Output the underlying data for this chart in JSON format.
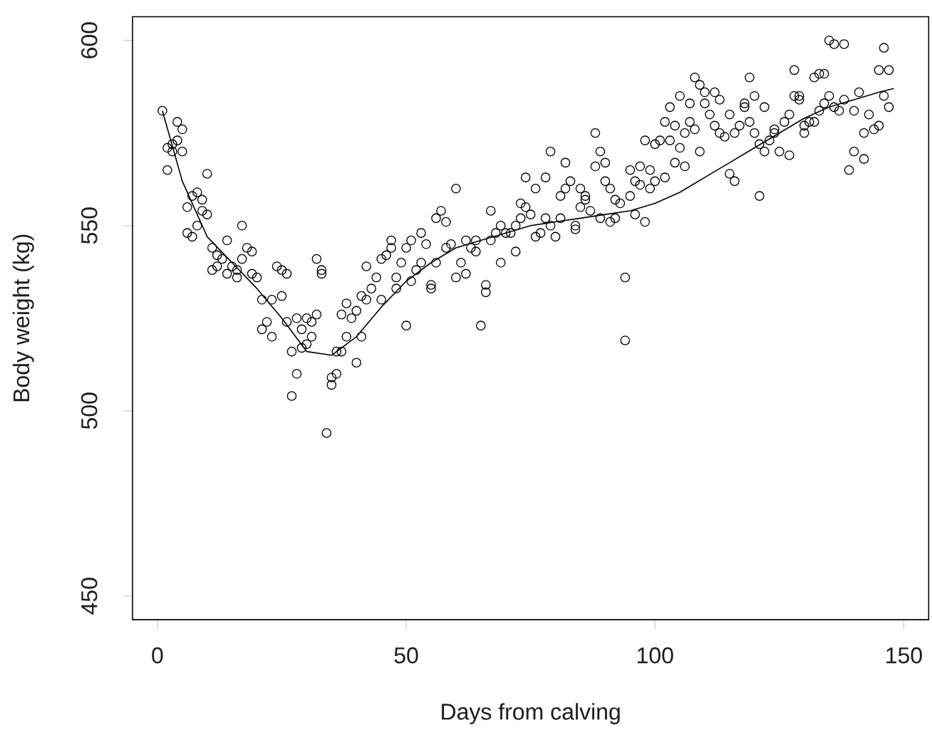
{
  "chart_data": {
    "type": "scatter",
    "xlabel": "Days from calving",
    "ylabel": "Body weight (kg)",
    "xlim": [
      -5,
      155
    ],
    "ylim": [
      443.6,
      606.4
    ],
    "xticks": [
      0,
      50,
      100,
      150
    ],
    "yticks": [
      450,
      500,
      550,
      600
    ],
    "grid": false,
    "series": [
      {
        "color": "#000000",
        "marker": "circle",
        "x": [
          1,
          2,
          2,
          3,
          3,
          4,
          4,
          5,
          5,
          6,
          6,
          7,
          7,
          8,
          8,
          9,
          9,
          10,
          10,
          11,
          11,
          12,
          12,
          13,
          14,
          14,
          15,
          16,
          16,
          17,
          17,
          18,
          19,
          19,
          20,
          21,
          21,
          22,
          23,
          23,
          24,
          25,
          25,
          26,
          26,
          27,
          27,
          28,
          28,
          29,
          29,
          30,
          30,
          31,
          31,
          32,
          32,
          33,
          33,
          34,
          35,
          35,
          36,
          36,
          37,
          37,
          38,
          38,
          39,
          40,
          40,
          41,
          41,
          42,
          42,
          43,
          44,
          45,
          45,
          46,
          47,
          47,
          48,
          48,
          49,
          50,
          50,
          51,
          51,
          52,
          53,
          53,
          54,
          55,
          55,
          56,
          56,
          57,
          58,
          58,
          59,
          60,
          60,
          61,
          62,
          62,
          63,
          64,
          64,
          65,
          66,
          66,
          67,
          67,
          68,
          69,
          69,
          70,
          71,
          72,
          72,
          73,
          73,
          74,
          74,
          75,
          76,
          76,
          77,
          78,
          78,
          79,
          79,
          80,
          81,
          81,
          82,
          82,
          83,
          84,
          84,
          85,
          85,
          86,
          86,
          87,
          88,
          88,
          89,
          89,
          90,
          90,
          91,
          91,
          92,
          92,
          93,
          94,
          94,
          95,
          95,
          96,
          96,
          97,
          97,
          98,
          98,
          99,
          99,
          100,
          100,
          101,
          102,
          102,
          103,
          103,
          104,
          104,
          105,
          105,
          106,
          106,
          107,
          107,
          108,
          108,
          109,
          109,
          110,
          110,
          111,
          112,
          112,
          113,
          113,
          114,
          115,
          115,
          116,
          116,
          117,
          118,
          118,
          119,
          119,
          120,
          120,
          121,
          121,
          122,
          122,
          123,
          124,
          124,
          125,
          126,
          127,
          127,
          128,
          128,
          129,
          129,
          130,
          130,
          131,
          132,
          132,
          133,
          133,
          134,
          134,
          135,
          135,
          136,
          136,
          137,
          138,
          138,
          139,
          140,
          140,
          141,
          142,
          142,
          143,
          144,
          145,
          145,
          146,
          146,
          147,
          147
        ],
        "values": [
          581,
          565,
          571,
          572,
          570,
          578,
          573,
          576,
          570,
          555,
          548,
          547,
          558,
          559,
          550,
          557,
          554,
          564,
          553,
          544,
          538,
          542,
          539,
          541,
          546,
          537,
          539,
          538,
          536,
          550,
          541,
          544,
          543,
          537,
          536,
          530,
          522,
          524,
          520,
          530,
          539,
          538,
          531,
          537,
          524,
          516,
          504,
          525,
          510,
          522,
          517,
          518,
          525,
          524,
          520,
          526,
          541,
          538,
          537,
          494,
          509,
          507,
          510,
          516,
          516,
          526,
          520,
          529,
          525,
          513,
          527,
          520,
          531,
          530,
          539,
          533,
          536,
          530,
          541,
          542,
          544,
          546,
          536,
          533,
          540,
          523,
          544,
          546,
          535,
          538,
          540,
          548,
          545,
          534,
          533,
          540,
          552,
          554,
          551,
          544,
          545,
          560,
          536,
          540,
          537,
          546,
          544,
          543,
          546,
          523,
          534,
          532,
          554,
          546,
          548,
          540,
          550,
          548,
          548,
          550,
          543,
          552,
          556,
          563,
          555,
          553,
          560,
          547,
          548,
          552,
          563,
          570,
          550,
          547,
          558,
          552,
          567,
          560,
          562,
          549,
          550,
          555,
          560,
          558,
          557,
          554,
          566,
          575,
          570,
          552,
          562,
          567,
          560,
          551,
          557,
          552,
          556,
          519,
          536,
          565,
          558,
          553,
          562,
          566,
          561,
          573,
          551,
          565,
          560,
          572,
          562,
          573,
          578,
          563,
          582,
          573,
          577,
          567,
          585,
          571,
          575,
          566,
          578,
          583,
          590,
          576,
          588,
          570,
          583,
          586,
          580,
          577,
          586,
          584,
          575,
          574,
          580,
          564,
          562,
          575,
          577,
          582,
          583,
          590,
          578,
          585,
          575,
          558,
          572,
          570,
          582,
          573,
          575,
          576,
          570,
          578,
          580,
          569,
          585,
          592,
          584,
          585,
          577,
          575,
          578,
          590,
          578,
          591,
          581,
          591,
          583,
          600,
          585,
          599,
          582,
          581,
          599,
          584,
          565,
          570,
          581,
          586,
          575,
          568,
          580,
          576,
          577,
          592,
          598,
          585,
          582,
          592
        ]
      },
      {
        "type": "line",
        "color": "#000000",
        "marker": "none",
        "line_style": "solid",
        "x": [
          1,
          5,
          10,
          15,
          20,
          25,
          30,
          35,
          40,
          45,
          50,
          55,
          60,
          65,
          70,
          75,
          80,
          85,
          90,
          95,
          100,
          105,
          110,
          115,
          120,
          125,
          130,
          135,
          140,
          145,
          148
        ],
        "values": [
          581,
          562,
          547,
          540,
          533,
          525,
          516,
          515,
          520,
          528,
          535,
          540,
          544,
          546,
          548,
          550,
          551,
          552,
          553,
          554,
          556,
          559,
          563,
          567,
          571,
          575,
          579,
          582,
          584,
          586,
          587
        ]
      }
    ]
  }
}
